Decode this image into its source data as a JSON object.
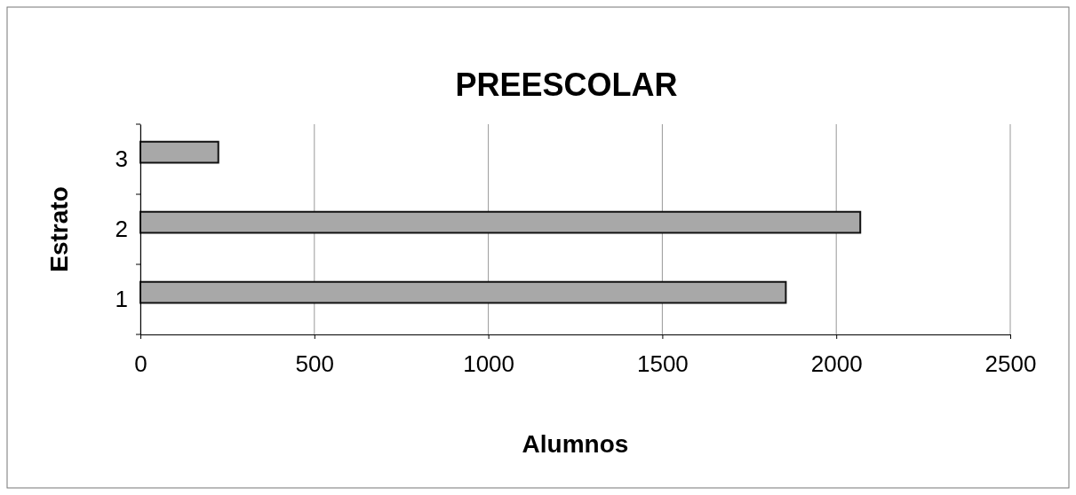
{
  "chart_data": {
    "type": "bar",
    "orientation": "horizontal",
    "title": "PREESCOLAR",
    "xlabel": "Alumnos",
    "ylabel": "Estrato",
    "categories": [
      "3",
      "2",
      "1"
    ],
    "values": [
      224,
      2069,
      1855
    ],
    "color": "#a8a8a8",
    "xlim": [
      0,
      2500
    ],
    "xticks": [
      0,
      500,
      1000,
      1500,
      2000,
      2500
    ],
    "grid": "x"
  }
}
